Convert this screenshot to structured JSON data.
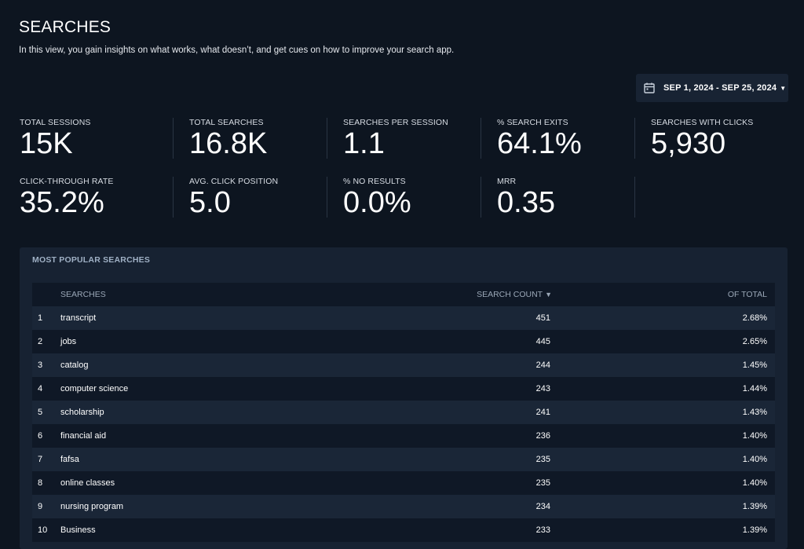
{
  "page": {
    "title": "SEARCHES",
    "subtitle": "In this view, you gain insights on what works, what doesn’t, and get cues on how to improve your search app."
  },
  "date_range": {
    "label": "SEP 1, 2024 - SEP 25, 2024",
    "icon": "calendar-icon",
    "caret_icon": "caret-down-icon"
  },
  "metrics": [
    {
      "label": "TOTAL SESSIONS",
      "value": "15K"
    },
    {
      "label": "TOTAL SEARCHES",
      "value": "16.8K"
    },
    {
      "label": "SEARCHES PER SESSION",
      "value": "1.1"
    },
    {
      "label": "% SEARCH EXITS",
      "value": "64.1%"
    },
    {
      "label": "SEARCHES WITH CLICKS",
      "value": "5,930"
    },
    {
      "label": "CLICK-THROUGH RATE",
      "value": "35.2%"
    },
    {
      "label": "AVG. CLICK POSITION",
      "value": "5.0"
    },
    {
      "label": "% NO RESULTS",
      "value": "0.0%"
    },
    {
      "label": "MRR",
      "value": "0.35"
    }
  ],
  "popular": {
    "title": "MOST POPULAR SEARCHES",
    "columns": {
      "term": "SEARCHES",
      "count": "SEARCH COUNT",
      "sort_icon": "sort-desc-icon",
      "pct": "OF TOTAL"
    },
    "rows": [
      {
        "idx": "1",
        "term": "transcript",
        "count": "451",
        "pct": "2.68%"
      },
      {
        "idx": "2",
        "term": "jobs",
        "count": "445",
        "pct": "2.65%"
      },
      {
        "idx": "3",
        "term": "catalog",
        "count": "244",
        "pct": "1.45%"
      },
      {
        "idx": "4",
        "term": "computer science",
        "count": "243",
        "pct": "1.44%"
      },
      {
        "idx": "5",
        "term": "scholarship",
        "count": "241",
        "pct": "1.43%"
      },
      {
        "idx": "6",
        "term": "financial aid",
        "count": "236",
        "pct": "1.40%"
      },
      {
        "idx": "7",
        "term": "fafsa",
        "count": "235",
        "pct": "1.40%"
      },
      {
        "idx": "8",
        "term": "online classes",
        "count": "235",
        "pct": "1.40%"
      },
      {
        "idx": "9",
        "term": "nursing program",
        "count": "234",
        "pct": "1.39%"
      },
      {
        "idx": "10",
        "term": "Business",
        "count": "233",
        "pct": "1.39%"
      }
    ]
  }
}
